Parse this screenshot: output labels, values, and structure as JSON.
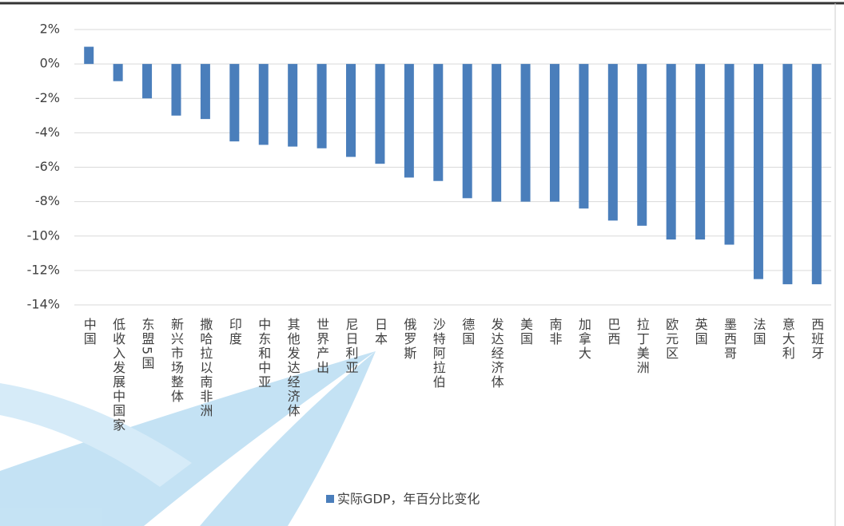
{
  "chart_data": {
    "type": "bar",
    "categories": [
      "中国",
      "低收入发展中国家",
      "东盟5国",
      "新兴市场整体",
      "撒哈拉以南非洲",
      "印度",
      "中东和中亚",
      "其他发达经济体",
      "世界产出",
      "尼日利亚",
      "日本",
      "俄罗斯",
      "沙特阿拉伯",
      "德国",
      "发达经济体",
      "美国",
      "南非",
      "加拿大",
      "巴西",
      "拉丁美洲",
      "欧元区",
      "英国",
      "墨西哥",
      "法国",
      "意大利",
      "西班牙"
    ],
    "series": [
      {
        "name": "实际GDP，年百分比变化",
        "color": "#4a7ebb",
        "values": [
          1.0,
          -1.0,
          -2.0,
          -3.0,
          -3.2,
          -4.5,
          -4.7,
          -4.8,
          -4.9,
          -5.4,
          -5.8,
          -6.6,
          -6.8,
          -7.8,
          -8.0,
          -8.0,
          -8.0,
          -8.4,
          -9.1,
          -9.4,
          -10.2,
          -10.2,
          -10.5,
          -12.5,
          -12.8,
          -12.8
        ]
      }
    ],
    "ylim": [
      -14,
      2
    ],
    "yticks": [
      {
        "value": -14,
        "label": "-14%"
      },
      {
        "value": -12,
        "label": "-12%"
      },
      {
        "value": -10,
        "label": "-10%"
      },
      {
        "value": -8,
        "label": "-8%"
      },
      {
        "value": -6,
        "label": "-6%"
      },
      {
        "value": -4,
        "label": "-4%"
      },
      {
        "value": -2,
        "label": "-2%"
      },
      {
        "value": 0,
        "label": "0%"
      },
      {
        "value": 2,
        "label": "2%"
      }
    ],
    "grid": true,
    "legend": "bottom"
  }
}
